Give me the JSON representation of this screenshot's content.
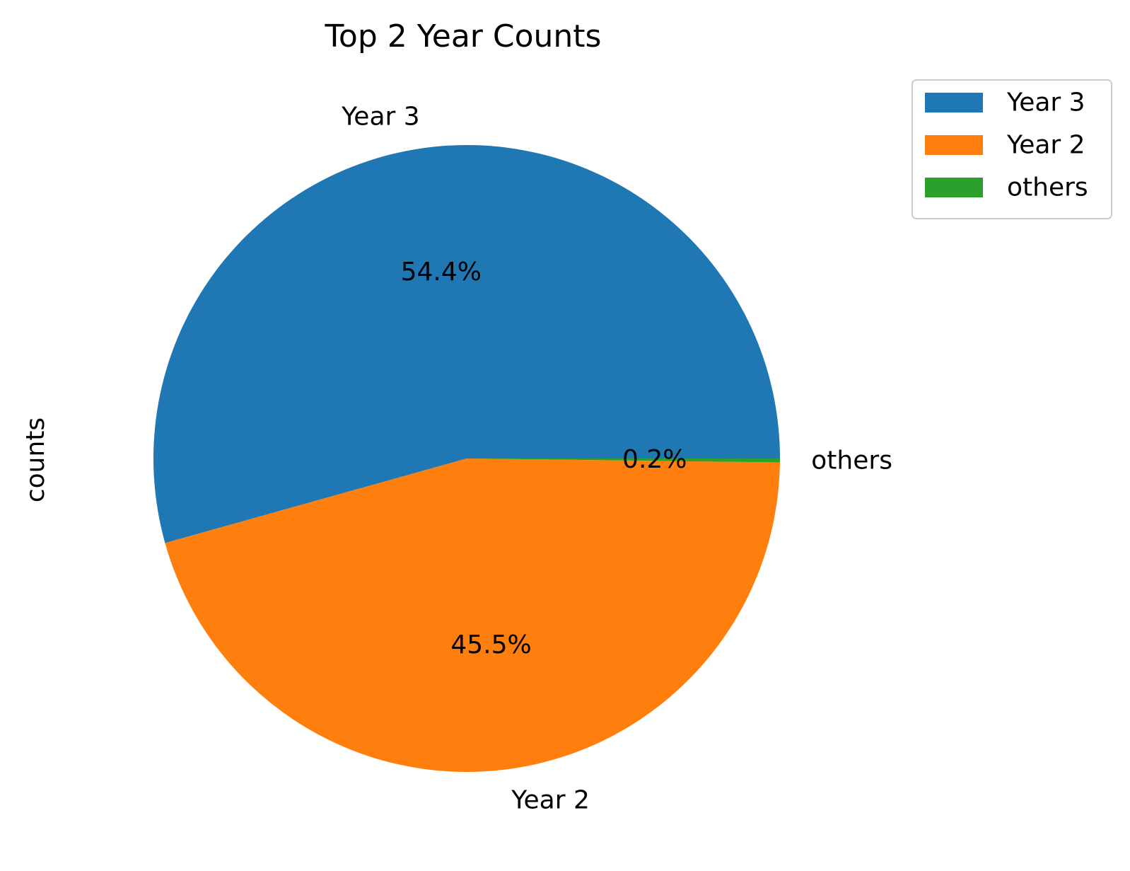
{
  "chart_data": {
    "type": "pie",
    "title": "Top 2 Year Counts",
    "ylabel": "counts",
    "labels": [
      "Year 3",
      "Year 2",
      "others"
    ],
    "values": [
      54.4,
      45.5,
      0.2
    ],
    "percent_labels": [
      "54.4%",
      "45.5%",
      "0.2%"
    ],
    "colors": [
      "#1f77b4",
      "#ff7f0e",
      "#2ca02c"
    ],
    "start_angle_deg": 0,
    "direction": "counterclockwise",
    "legend": {
      "position": "top-right",
      "entries": [
        "Year 3",
        "Year 2",
        "others"
      ]
    }
  }
}
